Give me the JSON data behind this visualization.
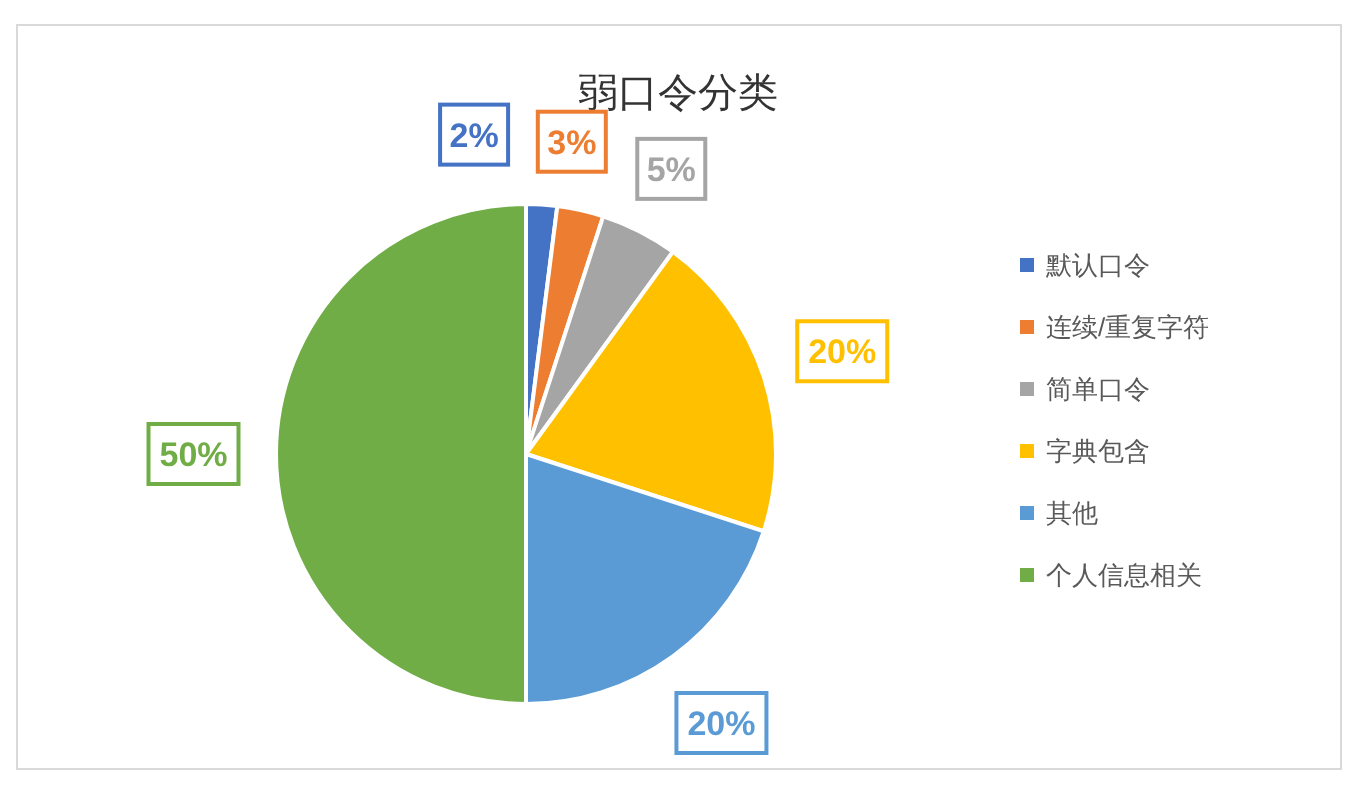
{
  "chart_data": {
    "type": "pie",
    "title": "弱口令分类",
    "categories": [
      "默认口令",
      "连续/重复字符",
      "简单口令",
      "字典包含",
      "其他",
      "个人信息相关"
    ],
    "values": [
      2,
      3,
      5,
      20,
      20,
      50
    ],
    "value_labels": [
      "2%",
      "3%",
      "5%",
      "20%",
      "20%",
      "50%"
    ],
    "colors": [
      "#4472c4",
      "#ed7d31",
      "#a5a5a5",
      "#ffc000",
      "#5b9bd5",
      "#70ad47"
    ],
    "legend": "right"
  }
}
